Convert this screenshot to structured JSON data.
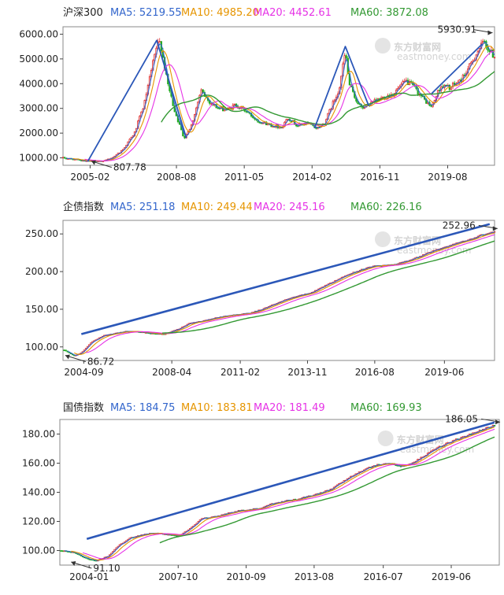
{
  "colors": {
    "ma5": "#3366cc",
    "ma10": "#e69500",
    "ma20": "#e633e6",
    "ma60": "#339933",
    "up": "#e03030",
    "down": "#22aa22",
    "trend": "#2b57b8",
    "axis": "#444444"
  },
  "watermark": {
    "brand": "东方财富网",
    "site": "eastmoney.com"
  },
  "chart_data": [
    {
      "type": "line",
      "title": "沪深300",
      "legend": [
        {
          "key": "ma5",
          "label": "MA5: 5219.55"
        },
        {
          "key": "ma10",
          "label": "MA10: 4985.20"
        },
        {
          "key": "ma20",
          "label": "MA20: 4452.61"
        },
        {
          "key": "ma60",
          "label": "MA60: 3872.08"
        }
      ],
      "x_range": [
        2004.0,
        2021.5
      ],
      "ylim": [
        700,
        6300
      ],
      "y_ticks": [
        "1000.00",
        "2000.00",
        "3000.00",
        "4000.00",
        "5000.00",
        "6000.00"
      ],
      "x_ticks": [
        {
          "x": 2005.1,
          "label": "2005-02"
        },
        {
          "x": 2008.6,
          "label": "2008-08"
        },
        {
          "x": 2011.35,
          "label": "2011-05"
        },
        {
          "x": 2014.1,
          "label": "2014-02"
        },
        {
          "x": 2016.85,
          "label": "2016-11"
        },
        {
          "x": 2019.6,
          "label": "2019-08"
        }
      ],
      "series": [
        [
          2004.0,
          1000
        ],
        [
          2004.6,
          920
        ],
        [
          2005.4,
          850
        ],
        [
          2005.9,
          940
        ],
        [
          2006.4,
          1300
        ],
        [
          2006.9,
          2000
        ],
        [
          2007.3,
          3200
        ],
        [
          2007.6,
          4600
        ],
        [
          2007.8,
          5500
        ],
        [
          2007.95,
          5700
        ],
        [
          2008.2,
          4200
        ],
        [
          2008.5,
          3000
        ],
        [
          2008.9,
          1800
        ],
        [
          2009.2,
          2300
        ],
        [
          2009.6,
          3700
        ],
        [
          2009.9,
          3300
        ],
        [
          2010.3,
          3000
        ],
        [
          2010.7,
          2950
        ],
        [
          2011.0,
          3150
        ],
        [
          2011.4,
          2900
        ],
        [
          2011.9,
          2500
        ],
        [
          2012.5,
          2300
        ],
        [
          2012.9,
          2250
        ],
        [
          2013.1,
          2650
        ],
        [
          2013.5,
          2300
        ],
        [
          2013.9,
          2400
        ],
        [
          2014.3,
          2200
        ],
        [
          2014.6,
          2400
        ],
        [
          2014.9,
          3100
        ],
        [
          2015.2,
          3800
        ],
        [
          2015.45,
          5300
        ],
        [
          2015.6,
          4000
        ],
        [
          2015.8,
          3500
        ],
        [
          2016.1,
          3000
        ],
        [
          2016.5,
          3200
        ],
        [
          2016.9,
          3400
        ],
        [
          2017.4,
          3600
        ],
        [
          2017.9,
          4100
        ],
        [
          2018.2,
          3900
        ],
        [
          2018.6,
          3400
        ],
        [
          2018.95,
          3050
        ],
        [
          2019.3,
          3900
        ],
        [
          2019.7,
          3850
        ],
        [
          2020.1,
          4100
        ],
        [
          2020.5,
          4700
        ],
        [
          2020.8,
          5300
        ],
        [
          2021.1,
          5700
        ],
        [
          2021.3,
          5300
        ],
        [
          2021.5,
          5100
        ]
      ],
      "peak": {
        "x": 2021.1,
        "y": 5930.91,
        "label": "5930.91"
      },
      "trough": {
        "x": 2005.4,
        "y": 807.78,
        "label": "807.78"
      },
      "trend_lines": [
        [
          [
            2005.0,
            850
          ],
          [
            2007.8,
            5750
          ],
          [
            2009.0,
            1800
          ]
        ],
        [
          [
            2014.2,
            2200
          ],
          [
            2015.45,
            5500
          ],
          [
            2016.4,
            3100
          ]
        ],
        [
          [
            2018.95,
            3600
          ],
          [
            2021.0,
            5600
          ]
        ]
      ]
    },
    {
      "type": "line",
      "title": "企债指数",
      "legend": [
        {
          "key": "ma5",
          "label": "MA5: 251.18"
        },
        {
          "key": "ma10",
          "label": "MA10: 249.44"
        },
        {
          "key": "ma20",
          "label": "MA20: 245.16"
        },
        {
          "key": "ma60",
          "label": "MA60: 226.16"
        }
      ],
      "x_range": [
        2003.85,
        2021.5
      ],
      "ylim": [
        82,
        268
      ],
      "y_ticks": [
        "100.00",
        "150.00",
        "200.00",
        "250.00"
      ],
      "x_ticks": [
        {
          "x": 2004.7,
          "label": "2004-09"
        },
        {
          "x": 2008.3,
          "label": "2008-04"
        },
        {
          "x": 2011.1,
          "label": "2011-02"
        },
        {
          "x": 2013.85,
          "label": "2013-11"
        },
        {
          "x": 2016.6,
          "label": "2016-08"
        },
        {
          "x": 2019.45,
          "label": "2019-06"
        }
      ],
      "series": [
        [
          2003.9,
          96
        ],
        [
          2004.3,
          88
        ],
        [
          2004.6,
          92
        ],
        [
          2005.0,
          106
        ],
        [
          2005.5,
          115
        ],
        [
          2006.0,
          118
        ],
        [
          2006.5,
          121
        ],
        [
          2007.0,
          120
        ],
        [
          2007.5,
          118
        ],
        [
          2008.0,
          117
        ],
        [
          2008.6,
          124
        ],
        [
          2009.0,
          131
        ],
        [
          2009.5,
          134
        ],
        [
          2010.0,
          138
        ],
        [
          2010.5,
          141
        ],
        [
          2011.0,
          143
        ],
        [
          2011.5,
          145
        ],
        [
          2012.0,
          150
        ],
        [
          2012.5,
          157
        ],
        [
          2013.0,
          163
        ],
        [
          2013.5,
          168
        ],
        [
          2014.0,
          172
        ],
        [
          2014.5,
          180
        ],
        [
          2015.0,
          188
        ],
        [
          2015.5,
          196
        ],
        [
          2016.0,
          202
        ],
        [
          2016.5,
          207
        ],
        [
          2017.0,
          208
        ],
        [
          2017.5,
          210
        ],
        [
          2018.0,
          215
        ],
        [
          2018.5,
          221
        ],
        [
          2019.0,
          228
        ],
        [
          2019.5,
          233
        ],
        [
          2020.0,
          238
        ],
        [
          2020.5,
          243
        ],
        [
          2021.0,
          249
        ],
        [
          2021.5,
          253
        ]
      ],
      "peak": {
        "x": 2021.3,
        "y": 252.96,
        "label": "252.96"
      },
      "trough": {
        "x": 2004.2,
        "y": 86.72,
        "label": "86.72"
      },
      "trend_lines": [
        [
          [
            2004.6,
            117
          ],
          [
            2021.3,
            263
          ]
        ]
      ]
    },
    {
      "type": "line",
      "title": "国债指数",
      "legend": [
        {
          "key": "ma5",
          "label": "MA5: 184.75"
        },
        {
          "key": "ma10",
          "label": "MA10: 183.81"
        },
        {
          "key": "ma20",
          "label": "MA20: 181.49"
        },
        {
          "key": "ma60",
          "label": "MA60: 169.93"
        }
      ],
      "x_range": [
        2002.75,
        2021.5
      ],
      "ylim": [
        90,
        190
      ],
      "y_ticks": [
        "100.00",
        "120.00",
        "140.00",
        "160.00",
        "180.00"
      ],
      "x_ticks": [
        {
          "x": 2004.0,
          "label": "2004-01"
        },
        {
          "x": 2007.8,
          "label": "2007-10"
        },
        {
          "x": 2010.7,
          "label": "2010-09"
        },
        {
          "x": 2013.6,
          "label": "2013-08"
        },
        {
          "x": 2016.55,
          "label": "2016-07"
        },
        {
          "x": 2019.45,
          "label": "2019-06"
        }
      ],
      "series": [
        [
          2002.8,
          100
        ],
        [
          2003.3,
          99
        ],
        [
          2003.8,
          95
        ],
        [
          2004.3,
          93
        ],
        [
          2004.8,
          96
        ],
        [
          2005.3,
          104
        ],
        [
          2005.8,
          109
        ],
        [
          2006.3,
          111
        ],
        [
          2006.8,
          112
        ],
        [
          2007.3,
          111
        ],
        [
          2007.8,
          110
        ],
        [
          2008.3,
          115
        ],
        [
          2008.8,
          122
        ],
        [
          2009.3,
          123
        ],
        [
          2009.8,
          125
        ],
        [
          2010.3,
          127
        ],
        [
          2010.8,
          128
        ],
        [
          2011.3,
          129
        ],
        [
          2011.8,
          132
        ],
        [
          2012.3,
          134
        ],
        [
          2012.8,
          135
        ],
        [
          2013.3,
          137
        ],
        [
          2013.8,
          139
        ],
        [
          2014.3,
          142
        ],
        [
          2014.8,
          147
        ],
        [
          2015.3,
          152
        ],
        [
          2015.8,
          156
        ],
        [
          2016.3,
          159
        ],
        [
          2016.8,
          160
        ],
        [
          2017.3,
          158
        ],
        [
          2017.8,
          160
        ],
        [
          2018.3,
          165
        ],
        [
          2018.8,
          170
        ],
        [
          2019.3,
          174
        ],
        [
          2019.8,
          177
        ],
        [
          2020.3,
          180
        ],
        [
          2020.8,
          183
        ],
        [
          2021.3,
          186
        ]
      ],
      "peak": {
        "x": 2021.2,
        "y": 186.05,
        "label": "186.05"
      },
      "trough": {
        "x": 2003.5,
        "y": 91.1,
        "label": "91.10"
      },
      "trend_lines": [
        [
          [
            2003.9,
            108
          ],
          [
            2021.3,
            188
          ]
        ]
      ]
    }
  ]
}
